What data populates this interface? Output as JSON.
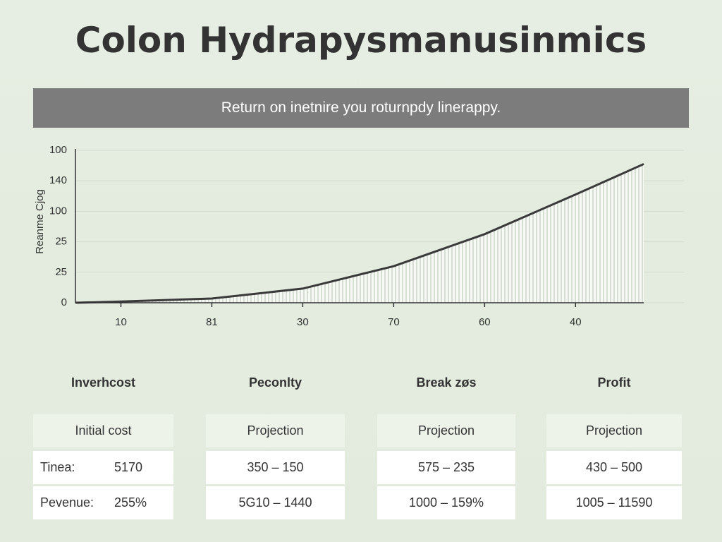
{
  "header": {
    "title": "Colon Hydrapysmanusinmics",
    "banner": "Return on inetnire you roturnpdy linerappy."
  },
  "chart_data": {
    "type": "line",
    "y_label": "Reanme Cjog",
    "color": "#3a3a3a",
    "x": [
      0.5,
      1,
      2,
      3,
      4,
      5,
      6,
      6.75
    ],
    "values": [
      0,
      0.8,
      2.8,
      9.3,
      24,
      45,
      71,
      91
    ],
    "xlim": [
      0.5,
      6.75
    ],
    "xticks": [
      {
        "value": 1,
        "label": "10"
      },
      {
        "value": 2,
        "label": "81"
      },
      {
        "value": 3,
        "label": "30"
      },
      {
        "value": 4,
        "label": "70"
      },
      {
        "value": 5,
        "label": "60"
      },
      {
        "value": 6,
        "label": "40"
      }
    ],
    "ylim": [
      0,
      100
    ],
    "yticks": [
      0,
      {
        "value": 20,
        "label": "25"
      },
      {
        "value": 40,
        "label": "25"
      },
      {
        "value": 60,
        "label": "100"
      },
      {
        "value": 80,
        "label": "140"
      },
      100
    ],
    "grid": true
  },
  "cards": [
    {
      "heading": "Inverhcost",
      "rows": [
        [
          "Initial cost"
        ],
        [
          "Tinea:",
          "5170"
        ],
        [
          "Pevenue:",
          "255%"
        ]
      ]
    },
    {
      "heading": "Peconlty",
      "rows": [
        [
          "Projection"
        ],
        [
          "350  –  150"
        ],
        [
          "5G10  –  1440"
        ]
      ]
    },
    {
      "heading": "Break zøs",
      "rows": [
        [
          "Projection"
        ],
        [
          "575  –  235"
        ],
        [
          "1000  –  159%"
        ]
      ]
    },
    {
      "heading": "Profit",
      "rows": [
        [
          "Projection"
        ],
        [
          "430  –  500"
        ],
        [
          "1005  –  11590"
        ]
      ]
    }
  ]
}
